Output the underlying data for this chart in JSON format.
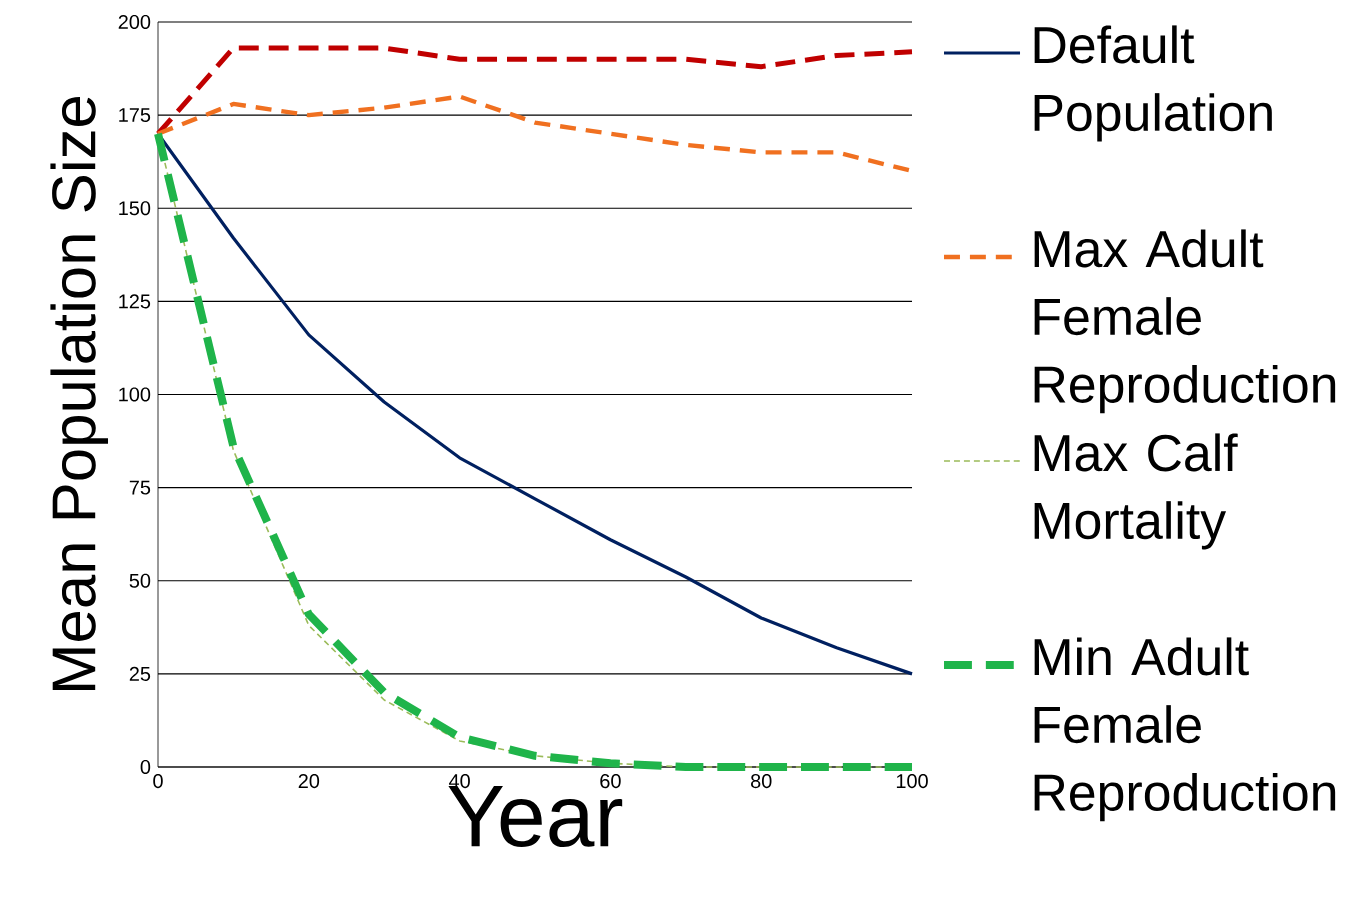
{
  "chart_data": {
    "type": "line",
    "xlabel": "Year",
    "ylabel": "Mean Population Size",
    "x": [
      0,
      10,
      20,
      30,
      40,
      50,
      60,
      70,
      80,
      90,
      100
    ],
    "series": [
      {
        "color": "#c00000",
        "line_style": "dashed",
        "values": [
          170,
          193,
          193,
          193,
          190,
          190,
          190,
          190,
          188,
          191,
          192
        ]
      },
      {
        "name": "Default Population",
        "color": "#002060",
        "line_style": "solid",
        "values": [
          170,
          142,
          116,
          98,
          83,
          72,
          61,
          51,
          40,
          32,
          25
        ]
      },
      {
        "name": "Max Adult Female Reproduction",
        "color": "#f07020",
        "line_style": "dashed",
        "values": [
          170,
          178,
          175,
          177,
          180,
          173,
          170,
          167,
          165,
          165,
          160
        ]
      },
      {
        "name": "Max Calf Mortality",
        "color": "#9bbb59",
        "line_style": "dashed",
        "values": [
          170,
          85,
          38,
          18,
          7,
          3,
          1,
          0,
          0,
          0,
          0
        ]
      },
      {
        "name": "Min Adult Female Reproduction",
        "color": "#1fb44a",
        "line_style": "dashed",
        "values": [
          170,
          86,
          41,
          20,
          8,
          3,
          1,
          0,
          0,
          0,
          0
        ]
      }
    ],
    "xlim": [
      0,
      100
    ],
    "xticks": [
      0,
      20,
      40,
      60,
      80,
      100
    ],
    "ylim": [
      0,
      200
    ],
    "yticks": [
      0,
      25,
      50,
      75,
      100,
      125,
      150,
      175,
      200
    ],
    "grid": "y",
    "legend": "right",
    "marker": "none"
  }
}
